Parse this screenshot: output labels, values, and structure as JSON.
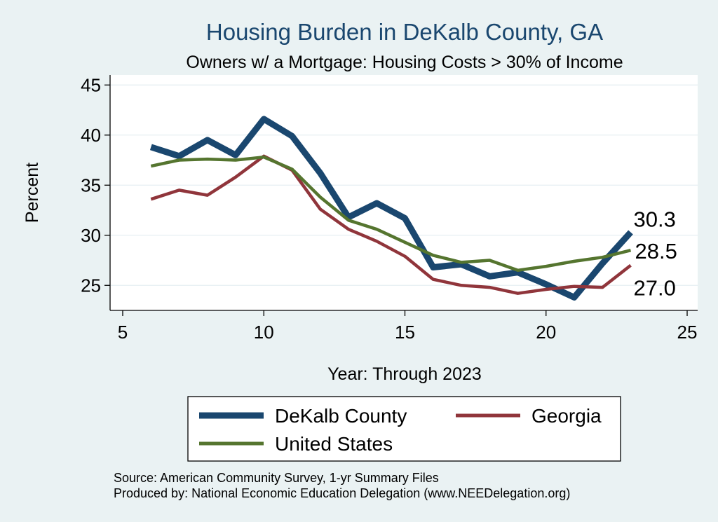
{
  "chart_data": {
    "type": "line",
    "title": "Housing Burden in DeKalb County, GA",
    "subtitle": "Owners w/ a Mortgage: Housing Costs > 30% of Income",
    "xlabel": "Year: Through 2023",
    "ylabel": "Percent",
    "xlim": [
      5,
      25
    ],
    "ylim": [
      22.5,
      46
    ],
    "x_ticks": [
      5,
      10,
      15,
      20,
      25
    ],
    "y_ticks": [
      25,
      30,
      35,
      40,
      45
    ],
    "grid": "horizontal",
    "legend_position": "bottom",
    "x": [
      6,
      7,
      8,
      9,
      10,
      11,
      12,
      13,
      14,
      15,
      16,
      17,
      18,
      19,
      20,
      21,
      22,
      23
    ],
    "series": [
      {
        "name": "DeKalb County",
        "color": "#1a476f",
        "values": [
          38.8,
          37.9,
          39.5,
          38.0,
          41.6,
          39.9,
          36.2,
          31.8,
          33.2,
          31.7,
          26.8,
          27.1,
          25.9,
          26.3,
          25.1,
          23.8,
          27.2,
          30.3
        ],
        "end_label": "30.3"
      },
      {
        "name": "Georgia",
        "color": "#90353b",
        "values": [
          33.6,
          34.5,
          34.0,
          35.8,
          37.9,
          36.5,
          32.6,
          30.6,
          29.4,
          27.9,
          25.6,
          25.0,
          24.8,
          24.2,
          24.6,
          24.9,
          24.8,
          27.0
        ],
        "end_label": "27.0"
      },
      {
        "name": "United States",
        "color": "#55752f",
        "values": [
          36.9,
          37.5,
          37.6,
          37.5,
          37.8,
          36.6,
          33.8,
          31.5,
          30.6,
          29.3,
          28.0,
          27.3,
          27.5,
          26.5,
          26.9,
          27.4,
          27.8,
          28.5
        ],
        "end_label": "28.5"
      }
    ]
  },
  "notes": {
    "source": "Source: American Community Survey, 1-yr Summary Files",
    "produced": "Produced by: National Economic Education Delegation (www.NEEDelegation.org)"
  }
}
